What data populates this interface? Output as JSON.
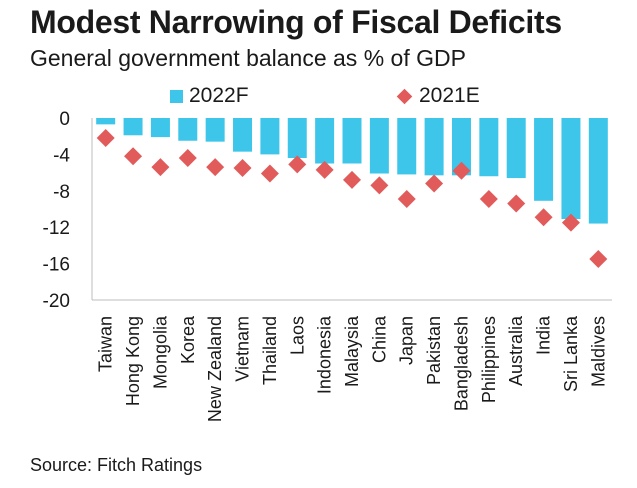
{
  "title": "Modest Narrowing of Fiscal Deficits",
  "subtitle": "General government balance as % of GDP",
  "source": "Source: Fitch Ratings",
  "colors": {
    "bar": "#3ec6ea",
    "marker": "#e15b5b",
    "axis": "#bdbdbd"
  },
  "chart_data": {
    "type": "bar",
    "title": "Modest Narrowing of Fiscal Deficits",
    "subtitle": "General government balance as % of GDP",
    "categories": [
      "Taiwan",
      "Hong Kong",
      "Mongolia",
      "Korea",
      "New Zealand",
      "Vietnam",
      "Thailand",
      "Laos",
      "Indonesia",
      "Malaysia",
      "China",
      "Japan",
      "Pakistan",
      "Bangladesh",
      "Philippines",
      "Australia",
      "India",
      "Sri Lanka",
      "Maldives"
    ],
    "series": [
      {
        "name": "2022F",
        "type": "bar",
        "values": [
          -0.7,
          -1.9,
          -2.1,
          -2.5,
          -2.6,
          -3.7,
          -4.0,
          -4.4,
          -5.0,
          -5.0,
          -6.1,
          -6.2,
          -6.3,
          -6.3,
          -6.4,
          -6.6,
          -9.1,
          -11.1,
          -11.6
        ]
      },
      {
        "name": "2021E",
        "type": "marker",
        "values": [
          -2.2,
          -4.2,
          -5.4,
          -4.4,
          -5.4,
          -5.5,
          -6.1,
          -5.1,
          -5.7,
          -6.8,
          -7.4,
          -8.9,
          -7.2,
          -5.8,
          -8.9,
          -9.4,
          -10.9,
          -11.5,
          -15.5
        ]
      }
    ],
    "yticks": [
      "0",
      "-4",
      "-8",
      "-12",
      "-16",
      "-20"
    ],
    "ylim": [
      -20,
      0
    ],
    "legend": {
      "position": "top",
      "items": [
        "2022F",
        "2021E"
      ]
    },
    "grid": false
  }
}
